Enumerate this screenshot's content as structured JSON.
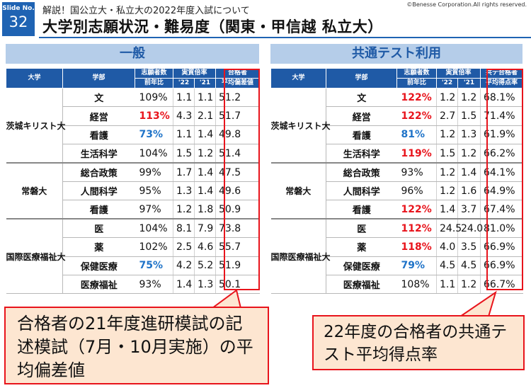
{
  "header": {
    "slide_label": "Slide No.",
    "slide_number": "32",
    "subtitle": "解説！国公立大・私立大の2022年度入試について",
    "title": "大学別志願状況・難易度（関東・甲信越 私立大）",
    "copyright": "©Benesse Corporation.All rights reserved."
  },
  "left_panel": {
    "heading": "一般",
    "columns": {
      "university": "大学",
      "faculty": "学部",
      "applicants": "志願者数",
      "applicants_sub": "前年比",
      "ratio": "実質倍率",
      "y22": "'22",
      "y21": "'21",
      "score": "合格者",
      "score_sub": "平均偏差値"
    },
    "groups": [
      {
        "university": "茨城キリスト大",
        "rows": [
          {
            "faculty": "文",
            "ratio_prev": "109%",
            "ratio_color": "normal",
            "y22": "1.1",
            "y21": "1.1",
            "score": "51.2"
          },
          {
            "faculty": "経営",
            "ratio_prev": "113%",
            "ratio_color": "red",
            "y22": "4.3",
            "y21": "2.1",
            "score": "51.7"
          },
          {
            "faculty": "看護",
            "ratio_prev": "73%",
            "ratio_color": "blue",
            "y22": "1.1",
            "y21": "1.4",
            "score": "49.8"
          },
          {
            "faculty": "生活科学",
            "ratio_prev": "104%",
            "ratio_color": "normal",
            "y22": "1.5",
            "y21": "1.2",
            "score": "51.4"
          }
        ]
      },
      {
        "university": "常磐大",
        "rows": [
          {
            "faculty": "総合政策",
            "ratio_prev": "99%",
            "ratio_color": "normal",
            "y22": "1.7",
            "y21": "1.4",
            "score": "47.5"
          },
          {
            "faculty": "人間科学",
            "ratio_prev": "95%",
            "ratio_color": "normal",
            "y22": "1.3",
            "y21": "1.4",
            "score": "49.6"
          },
          {
            "faculty": "看護",
            "ratio_prev": "97%",
            "ratio_color": "normal",
            "y22": "1.2",
            "y21": "1.8",
            "score": "50.9"
          }
        ]
      },
      {
        "university": "国際医療福祉大",
        "rows": [
          {
            "faculty": "医",
            "ratio_prev": "104%",
            "ratio_color": "normal",
            "y22": "8.1",
            "y21": "7.9",
            "score": "73.8"
          },
          {
            "faculty": "薬",
            "ratio_prev": "102%",
            "ratio_color": "normal",
            "y22": "2.5",
            "y21": "4.6",
            "score": "55.7"
          },
          {
            "faculty": "保健医療",
            "ratio_prev": "75%",
            "ratio_color": "blue",
            "y22": "4.2",
            "y21": "5.2",
            "score": "51.9"
          },
          {
            "faculty": "医療福祉",
            "ratio_prev": "93%",
            "ratio_color": "normal",
            "y22": "1.4",
            "y21": "1.3",
            "score": "50.1"
          }
        ]
      }
    ],
    "callout": "合格者の21年度進研模試の記述模試（7月・10月実施）の平均偏差値"
  },
  "right_panel": {
    "heading": "共通テスト利用",
    "columns": {
      "university": "大学",
      "faculty": "学部",
      "applicants": "志願者数",
      "applicants_sub": "前年比",
      "ratio": "実質倍率",
      "y22": "'22",
      "y21": "'21",
      "score": "共テ合格者",
      "score_sub": "平均得点率"
    },
    "groups": [
      {
        "university": "茨城キリスト大",
        "rows": [
          {
            "faculty": "文",
            "ratio_prev": "122%",
            "ratio_color": "red",
            "y22": "1.2",
            "y21": "1.2",
            "score": "68.1%"
          },
          {
            "faculty": "経営",
            "ratio_prev": "122%",
            "ratio_color": "red",
            "y22": "2.7",
            "y21": "1.5",
            "score": "71.4%"
          },
          {
            "faculty": "看護",
            "ratio_prev": "81%",
            "ratio_color": "blue",
            "y22": "1.2",
            "y21": "1.3",
            "score": "61.9%"
          },
          {
            "faculty": "生活科学",
            "ratio_prev": "119%",
            "ratio_color": "red",
            "y22": "1.5",
            "y21": "1.2",
            "score": "66.2%"
          }
        ]
      },
      {
        "university": "常磐大",
        "rows": [
          {
            "faculty": "総合政策",
            "ratio_prev": "93%",
            "ratio_color": "normal",
            "y22": "1.2",
            "y21": "1.4",
            "score": "64.1%"
          },
          {
            "faculty": "人間科学",
            "ratio_prev": "96%",
            "ratio_color": "normal",
            "y22": "1.2",
            "y21": "1.6",
            "score": "64.9%"
          },
          {
            "faculty": "看護",
            "ratio_prev": "122%",
            "ratio_color": "red",
            "y22": "1.4",
            "y21": "3.7",
            "score": "67.4%"
          }
        ]
      },
      {
        "university": "国際医療福祉大",
        "rows": [
          {
            "faculty": "医",
            "ratio_prev": "112%",
            "ratio_color": "red",
            "y22": "24.5",
            "y21": "24.0",
            "score": "81.0%"
          },
          {
            "faculty": "薬",
            "ratio_prev": "118%",
            "ratio_color": "red",
            "y22": "4.0",
            "y21": "3.5",
            "score": "66.9%"
          },
          {
            "faculty": "保健医療",
            "ratio_prev": "79%",
            "ratio_color": "blue",
            "y22": "4.5",
            "y21": "4.5",
            "score": "66.9%"
          },
          {
            "faculty": "医療福祉",
            "ratio_prev": "108%",
            "ratio_color": "normal",
            "y22": "1.1",
            "y21": "1.2",
            "score": "66.7%"
          }
        ]
      }
    ],
    "callout": "22年度の合格者の共通テスト平均得点率"
  },
  "colors": {
    "accent_blue": "#1f5aa6",
    "panel_head_bg": "#b5cde9",
    "highlight_red": "#e8141c",
    "increase_red": "#e8141c",
    "decrease_blue": "#1f73c8",
    "callout_bg": "#fde6d1"
  }
}
